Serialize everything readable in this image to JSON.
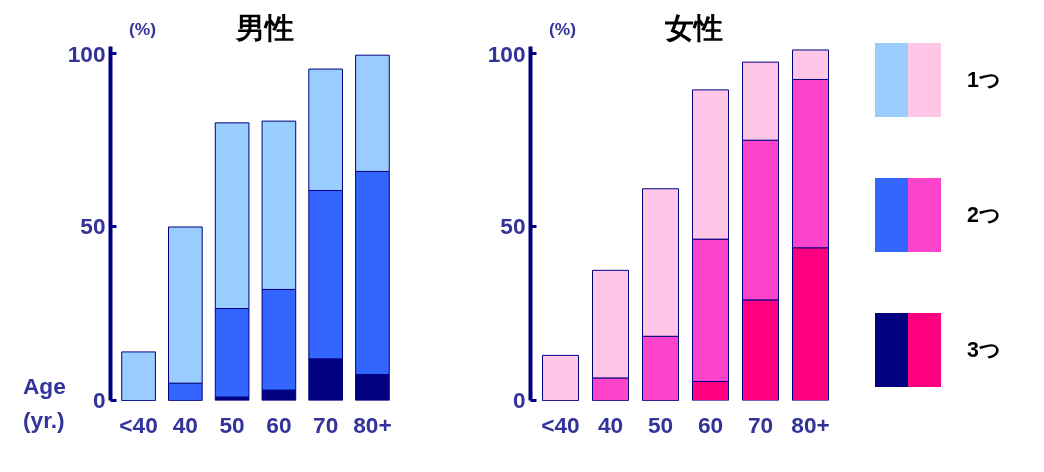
{
  "chart_data": [
    {
      "type": "bar",
      "title": "男性",
      "ylabel": "(%)",
      "xlabel": "Age (yr.)",
      "categories": [
        "<40",
        "40",
        "50",
        "60",
        "70",
        "80+"
      ],
      "stacked": true,
      "ylim": [
        0,
        102
      ],
      "yticks": [
        0,
        50,
        100
      ],
      "grid": false,
      "legend": "right",
      "series": [
        {
          "name": "3つ",
          "color": "#000080",
          "values": [
            0,
            0,
            1,
            3,
            12,
            7.5
          ]
        },
        {
          "name": "2つ",
          "color": "#3366ff",
          "values": [
            0,
            5,
            25.5,
            29,
            48.5,
            58.5
          ]
        },
        {
          "name": "1つ",
          "color": "#99ccff",
          "values": [
            14,
            45,
            53.5,
            48.5,
            35,
            33.5
          ]
        }
      ]
    },
    {
      "type": "bar",
      "title": "女性",
      "ylabel": "(%)",
      "categories": [
        "<40",
        "40",
        "50",
        "60",
        "70",
        "80+"
      ],
      "stacked": true,
      "ylim": [
        0,
        102
      ],
      "yticks": [
        0,
        50,
        100
      ],
      "grid": false,
      "series": [
        {
          "color": "#ff0080",
          "values": [
            0,
            0,
            0,
            5.5,
            29,
            44
          ]
        },
        {
          "color": "#ff44cc",
          "values": [
            0,
            6.5,
            18.5,
            41,
            46,
            48.5
          ]
        },
        {
          "color": "#ffc6e8",
          "values": [
            13,
            31,
            42.5,
            43,
            22.5,
            8.5
          ]
        }
      ]
    }
  ]
}
